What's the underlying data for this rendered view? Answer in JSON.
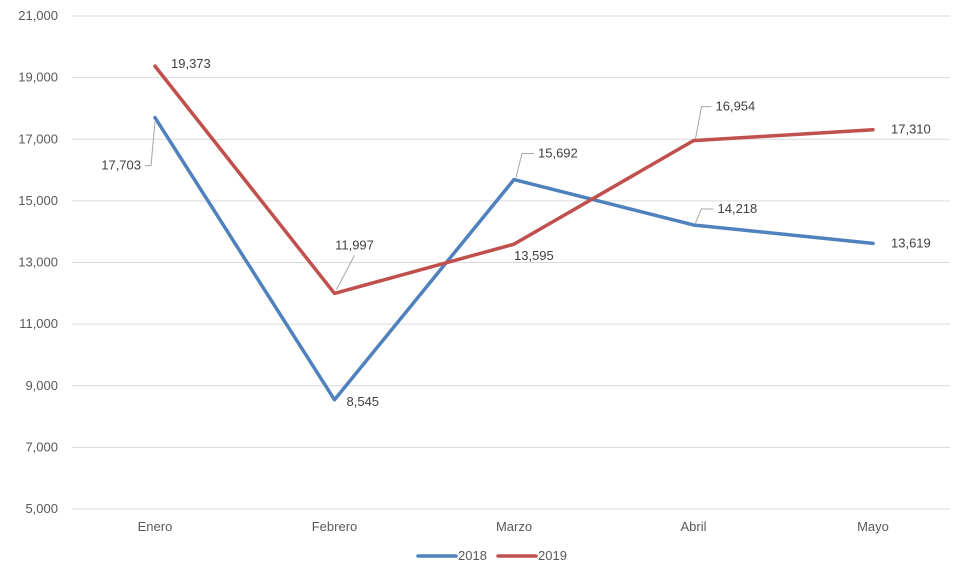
{
  "chart_data": {
    "type": "line",
    "title": "",
    "xlabel": "",
    "ylabel": "",
    "categories": [
      "Enero",
      "Febrero",
      "Marzo",
      "Abril",
      "Mayo"
    ],
    "ylim": [
      5000,
      21000
    ],
    "yticks": [
      "5,000",
      "7,000",
      "9,000",
      "11,000",
      "13,000",
      "15,000",
      "17,000",
      "19,000",
      "21,000"
    ],
    "grid": true,
    "legend_position": "bottom",
    "series": [
      {
        "name": "2018",
        "color": "#4f81bd",
        "values": [
          17703,
          8545,
          15692,
          14218,
          13619
        ],
        "labels": [
          "17,703",
          "8,545",
          "15,692",
          "14,218",
          "13,619"
        ]
      },
      {
        "name": "2019",
        "color": "#c0504d",
        "values": [
          19373,
          11997,
          13595,
          16954,
          17310
        ],
        "labels": [
          "19,373",
          "11,997",
          "13,595",
          "16,954",
          "17,310"
        ]
      }
    ]
  }
}
